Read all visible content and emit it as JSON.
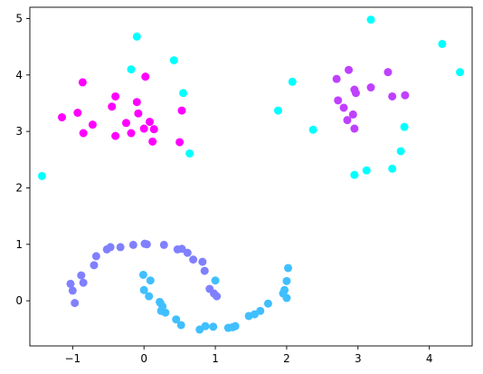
{
  "chart_data": {
    "type": "scatter",
    "title": "",
    "xlabel": "",
    "ylabel": "",
    "xlim": [
      -1.6,
      4.6
    ],
    "ylim": [
      -0.8,
      5.2
    ],
    "grid": false,
    "legend": "none",
    "xticks": [
      -1,
      0,
      1,
      2,
      3,
      4
    ],
    "yticks": [
      0,
      1,
      2,
      3,
      4,
      5
    ],
    "xtick_labels": [
      "−1",
      "0",
      "1",
      "2",
      "3",
      "4"
    ],
    "ytick_labels": [
      "0",
      "1",
      "2",
      "3",
      "4",
      "5"
    ],
    "series": [
      {
        "color": "#ff00ff",
        "x": [
          -1.15,
          -0.93,
          -0.85,
          -0.72,
          -0.45,
          -0.4,
          -0.4,
          -0.25,
          -0.18,
          -0.1,
          -0.08,
          0.0,
          0.02,
          0.08,
          0.12,
          0.14,
          0.5,
          0.53,
          -0.86
        ],
        "y": [
          3.25,
          3.33,
          2.97,
          3.12,
          3.44,
          3.62,
          2.92,
          3.15,
          2.97,
          3.52,
          3.32,
          3.05,
          3.97,
          3.17,
          2.82,
          3.04,
          2.81,
          3.37,
          3.87
        ]
      },
      {
        "color": "#bf40ff",
        "x": [
          2.7,
          2.72,
          2.8,
          2.85,
          2.87,
          2.93,
          2.95,
          2.95,
          2.97,
          3.18,
          3.42,
          3.48,
          3.66
        ],
        "y": [
          3.93,
          3.55,
          3.42,
          3.2,
          4.09,
          3.3,
          3.74,
          3.05,
          3.68,
          3.78,
          4.05,
          3.62,
          3.64
        ]
      },
      {
        "color": "#00ffff",
        "x": [
          -1.43,
          -0.18,
          -0.1,
          0.42,
          0.55,
          0.64,
          1.88,
          2.08,
          2.37,
          2.95,
          3.12,
          3.18,
          3.48,
          3.6,
          3.65,
          4.18,
          4.43
        ],
        "y": [
          2.21,
          4.1,
          4.68,
          4.26,
          3.68,
          2.61,
          3.37,
          3.88,
          3.03,
          2.23,
          2.31,
          4.98,
          2.34,
          2.65,
          3.08,
          4.55,
          4.05
        ]
      },
      {
        "color": "#8080ff",
        "x": [
          -1.03,
          -1.0,
          -0.97,
          -0.88,
          -0.85,
          -0.7,
          -0.67,
          -0.52,
          -0.47,
          -0.33,
          -0.15,
          0.01,
          0.04,
          0.28,
          0.47,
          0.53,
          0.61,
          0.69,
          0.82,
          0.85,
          0.92,
          0.98,
          1.02
        ],
        "y": [
          0.3,
          0.18,
          -0.04,
          0.45,
          0.32,
          0.63,
          0.79,
          0.91,
          0.95,
          0.95,
          0.99,
          1.01,
          1.0,
          0.99,
          0.91,
          0.92,
          0.85,
          0.73,
          0.69,
          0.53,
          0.21,
          0.13,
          0.08
        ]
      },
      {
        "color": "#40bfff",
        "x": [
          -0.01,
          0.0,
          0.07,
          0.09,
          0.23,
          0.24,
          0.3,
          0.45,
          0.52,
          0.78,
          0.86,
          0.97,
          1.18,
          1.24,
          1.28,
          1.47,
          1.55,
          1.63,
          1.74,
          1.95,
          1.97,
          2.0,
          2.0,
          2.02,
          0.26,
          0.22,
          1.0
        ],
        "y": [
          0.46,
          0.19,
          0.08,
          0.36,
          -0.04,
          -0.18,
          -0.21,
          -0.33,
          -0.43,
          -0.51,
          -0.45,
          -0.46,
          -0.48,
          -0.47,
          -0.45,
          -0.27,
          -0.24,
          -0.18,
          -0.05,
          0.13,
          0.19,
          0.35,
          0.05,
          0.58,
          -0.1,
          -0.02,
          0.36
        ]
      }
    ]
  }
}
